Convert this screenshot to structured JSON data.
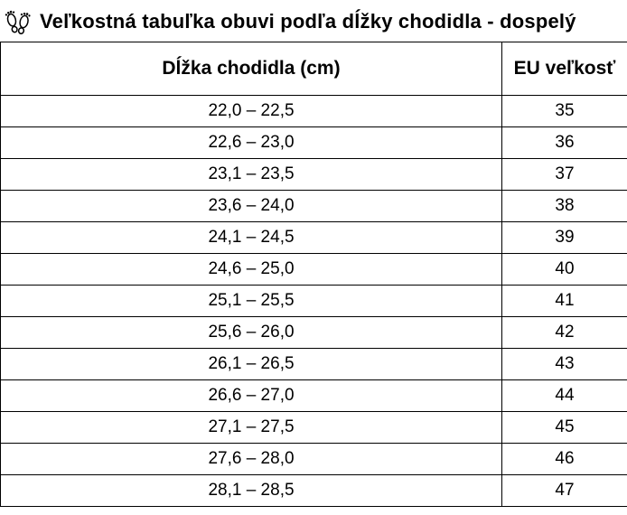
{
  "header": {
    "title": "Veľkostná tabuľka obuvi podľa dĺžky chodidla - dospelý",
    "icon": "footprints-icon"
  },
  "table": {
    "headers": [
      "Dĺžka chodidla (cm)",
      "EU veľkosť"
    ],
    "rows": [
      [
        "22,0 – 22,5",
        "35"
      ],
      [
        "22,6 – 23,0",
        "36"
      ],
      [
        "23,1 – 23,5",
        "37"
      ],
      [
        "23,6 – 24,0",
        "38"
      ],
      [
        "24,1 – 24,5",
        "39"
      ],
      [
        "24,6 – 25,0",
        "40"
      ],
      [
        "25,1 – 25,5",
        "41"
      ],
      [
        "25,6 – 26,0",
        "42"
      ],
      [
        "26,1 – 26,5",
        "43"
      ],
      [
        "26,6 – 27,0",
        "44"
      ],
      [
        "27,1 – 27,5",
        "45"
      ],
      [
        "27,6 – 28,0",
        "46"
      ],
      [
        "28,1 – 28,5",
        "47"
      ]
    ]
  },
  "colors": {
    "border": "#000000",
    "text": "#000000",
    "background": "#ffffff"
  }
}
